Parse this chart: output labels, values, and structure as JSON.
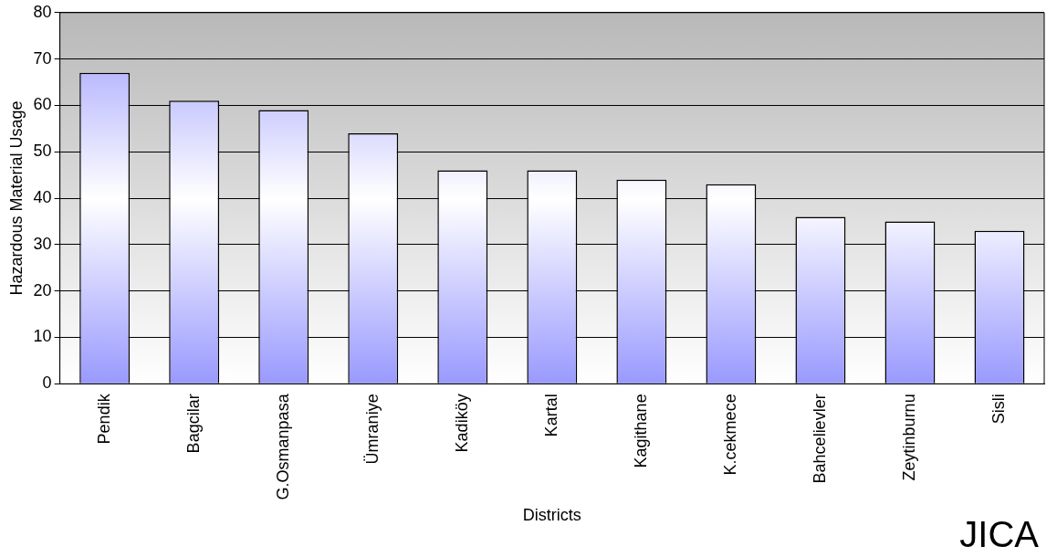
{
  "chart_data": {
    "type": "bar",
    "xlabel": "Districts",
    "ylabel": "Hazardous Material Usage",
    "categories": [
      "Pendik",
      "Bagcilar",
      "G.Osmanpasa",
      "Ümraniye",
      "Kadiköy",
      "Kartal",
      "Kagithane",
      "K.cekmece",
      "Bahcelievler",
      "Zeytinburnu",
      "Sisli"
    ],
    "values": [
      67,
      61,
      59,
      54,
      46,
      46,
      44,
      43,
      36,
      35,
      33
    ],
    "color": "#9999ff",
    "ylim": [
      0,
      80
    ],
    "yticks": [
      0,
      10,
      20,
      30,
      40,
      50,
      60,
      70,
      80
    ],
    "grid": "y",
    "legend": false,
    "annotations": [
      "JICA"
    ]
  }
}
